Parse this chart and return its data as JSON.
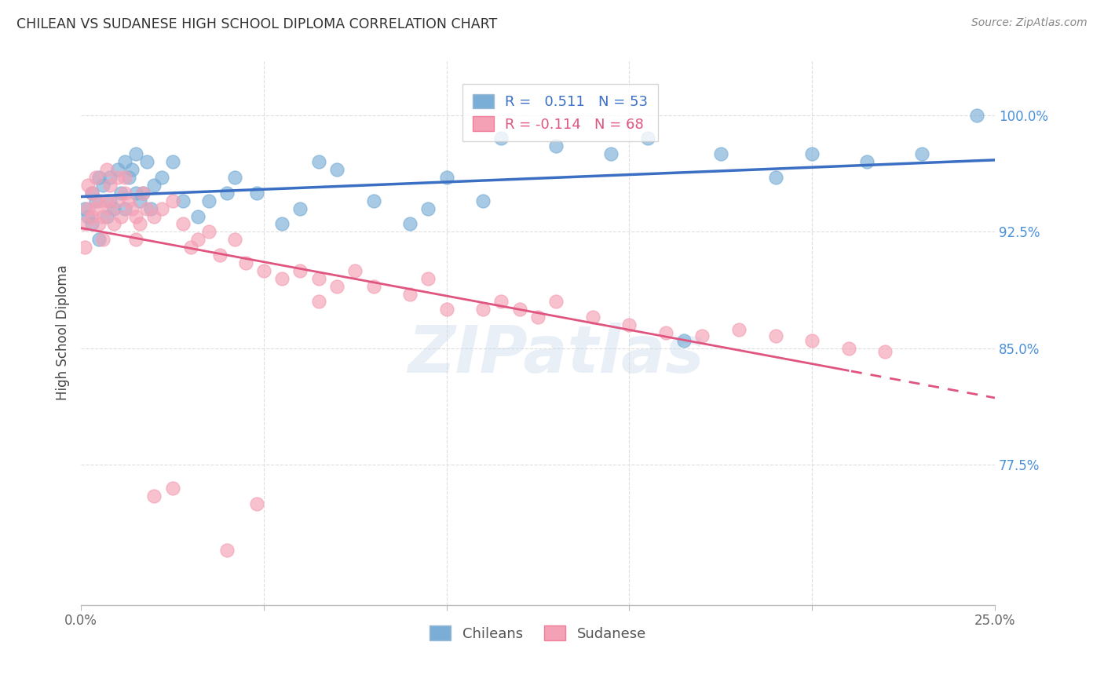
{
  "title": "CHILEAN VS SUDANESE HIGH SCHOOL DIPLOMA CORRELATION CHART",
  "source": "Source: ZipAtlas.com",
  "ylabel": "High School Diploma",
  "xlim": [
    0.0,
    0.25
  ],
  "ylim": [
    0.685,
    1.035
  ],
  "yticks": [
    0.775,
    0.85,
    0.925,
    1.0
  ],
  "ytick_labels": [
    "77.5%",
    "85.0%",
    "92.5%",
    "100.0%"
  ],
  "chilean_R": 0.511,
  "chilean_N": 53,
  "sudanese_R": -0.114,
  "sudanese_N": 68,
  "chilean_color": "#7aaed6",
  "sudanese_color": "#f4a0b5",
  "trendline_chilean_color": "#3a6fc4",
  "trendline_sudanese_color": "#e05580",
  "background_color": "#ffffff",
  "grid_color": "#dddddd",
  "title_color": "#333333",
  "source_color": "#888888",
  "axis_label_color": "#444444",
  "ytick_color": "#4a90d9",
  "watermark_text": "ZIPatlas",
  "chilean_x": [
    0.001,
    0.002,
    0.003,
    0.003,
    0.004,
    0.005,
    0.005,
    0.006,
    0.007,
    0.008,
    0.008,
    0.009,
    0.01,
    0.011,
    0.012,
    0.012,
    0.013,
    0.014,
    0.015,
    0.015,
    0.016,
    0.017,
    0.018,
    0.019,
    0.02,
    0.022,
    0.025,
    0.028,
    0.032,
    0.035,
    0.04,
    0.042,
    0.048,
    0.055,
    0.06,
    0.065,
    0.07,
    0.08,
    0.09,
    0.095,
    0.1,
    0.11,
    0.115,
    0.13,
    0.145,
    0.155,
    0.165,
    0.175,
    0.19,
    0.2,
    0.215,
    0.23,
    0.245
  ],
  "chilean_y": [
    0.94,
    0.935,
    0.95,
    0.93,
    0.945,
    0.92,
    0.96,
    0.955,
    0.935,
    0.945,
    0.96,
    0.94,
    0.965,
    0.95,
    0.94,
    0.97,
    0.96,
    0.965,
    0.975,
    0.95,
    0.945,
    0.95,
    0.97,
    0.94,
    0.955,
    0.96,
    0.97,
    0.945,
    0.935,
    0.945,
    0.95,
    0.96,
    0.95,
    0.93,
    0.94,
    0.97,
    0.965,
    0.945,
    0.93,
    0.94,
    0.96,
    0.945,
    0.985,
    0.98,
    0.975,
    0.985,
    0.855,
    0.975,
    0.96,
    0.975,
    0.97,
    0.975,
    1.0
  ],
  "sudanese_x": [
    0.001,
    0.001,
    0.002,
    0.002,
    0.003,
    0.003,
    0.004,
    0.004,
    0.005,
    0.005,
    0.006,
    0.006,
    0.007,
    0.007,
    0.008,
    0.008,
    0.009,
    0.01,
    0.01,
    0.011,
    0.012,
    0.012,
    0.013,
    0.014,
    0.015,
    0.015,
    0.016,
    0.017,
    0.018,
    0.02,
    0.022,
    0.025,
    0.028,
    0.03,
    0.032,
    0.035,
    0.038,
    0.042,
    0.045,
    0.05,
    0.055,
    0.06,
    0.065,
    0.065,
    0.07,
    0.075,
    0.08,
    0.09,
    0.095,
    0.1,
    0.11,
    0.115,
    0.12,
    0.125,
    0.13,
    0.14,
    0.15,
    0.16,
    0.17,
    0.18,
    0.19,
    0.2,
    0.21,
    0.22,
    0.04,
    0.048,
    0.025,
    0.02
  ],
  "sudanese_y": [
    0.93,
    0.915,
    0.94,
    0.955,
    0.935,
    0.95,
    0.94,
    0.96,
    0.93,
    0.945,
    0.92,
    0.935,
    0.945,
    0.965,
    0.94,
    0.955,
    0.93,
    0.945,
    0.96,
    0.935,
    0.95,
    0.96,
    0.945,
    0.94,
    0.935,
    0.92,
    0.93,
    0.95,
    0.94,
    0.935,
    0.94,
    0.945,
    0.93,
    0.915,
    0.92,
    0.925,
    0.91,
    0.92,
    0.905,
    0.9,
    0.895,
    0.9,
    0.895,
    0.88,
    0.89,
    0.9,
    0.89,
    0.885,
    0.895,
    0.875,
    0.875,
    0.88,
    0.875,
    0.87,
    0.88,
    0.87,
    0.865,
    0.86,
    0.858,
    0.862,
    0.858,
    0.855,
    0.85,
    0.848,
    0.72,
    0.75,
    0.76,
    0.755
  ]
}
